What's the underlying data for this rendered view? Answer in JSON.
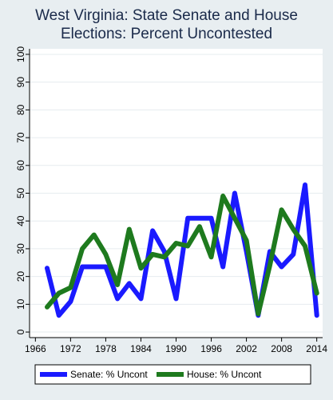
{
  "chart_data": {
    "type": "line",
    "title_lines": [
      "West Virginia: State Senate and House",
      "Elections: Percent Uncontested"
    ],
    "xlabel": "",
    "ylabel": "",
    "x_ticks": [
      1966,
      1972,
      1978,
      1984,
      1990,
      1996,
      2002,
      2008,
      2014
    ],
    "y_ticks": [
      0,
      10,
      20,
      30,
      40,
      50,
      60,
      70,
      80,
      90,
      100
    ],
    "xlim": [
      1965,
      2015
    ],
    "ylim": [
      -2,
      102
    ],
    "grid": "horizontal",
    "legend_position": "bottom",
    "series": [
      {
        "name": "Senate: % Uncont",
        "color": "#1a1aff",
        "x": [
          1968,
          1970,
          1972,
          1974,
          1976,
          1978,
          1980,
          1982,
          1984,
          1986,
          1988,
          1990,
          1992,
          1994,
          1996,
          1998,
          2000,
          2002,
          2004,
          2006,
          2008,
          2010,
          2012,
          2014
        ],
        "y": [
          23,
          6,
          11,
          23.5,
          23.5,
          23.5,
          12,
          17.5,
          12,
          36.5,
          29,
          12,
          41,
          41,
          41,
          23.5,
          50,
          29,
          6,
          29,
          23.5,
          28,
          53,
          6
        ]
      },
      {
        "name": "House: % Uncont",
        "color": "#1e7a1e",
        "x": [
          1968,
          1970,
          1972,
          1974,
          1976,
          1978,
          1980,
          1982,
          1984,
          1986,
          1988,
          1990,
          1992,
          1994,
          1996,
          1998,
          2000,
          2002,
          2004,
          2006,
          2008,
          2010,
          2012,
          2014
        ],
        "y": [
          9,
          14,
          16,
          30,
          35,
          28,
          17,
          37,
          23,
          28,
          27,
          32,
          31,
          38,
          27,
          49,
          41,
          33,
          6.5,
          24,
          44,
          37,
          31,
          14
        ]
      }
    ]
  }
}
